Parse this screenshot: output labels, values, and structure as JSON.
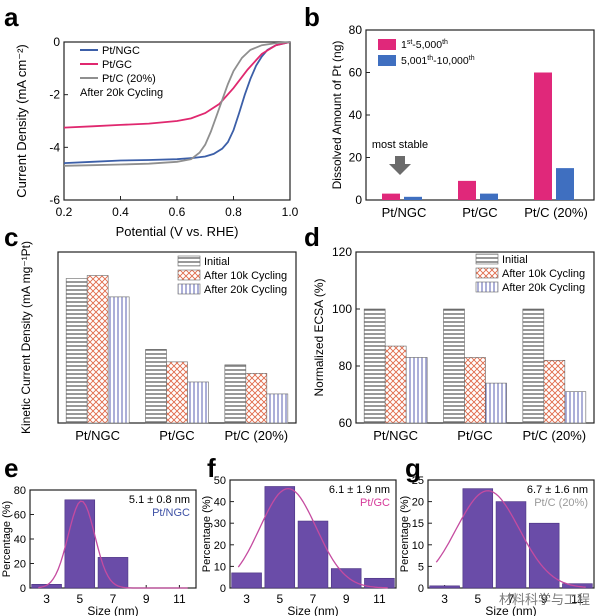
{
  "panels": {
    "a": "a",
    "b": "b",
    "c": "c",
    "d": "d",
    "e": "e",
    "f": "f",
    "g": "g"
  },
  "watermark": "材料科学与工程",
  "chart_data": [
    {
      "id": "a",
      "type": "line",
      "xlabel": "Potential (V vs. RHE)",
      "ylabel": "Current Density (mA cm⁻²)",
      "xlim": [
        0.2,
        1.0
      ],
      "ylim": [
        -6,
        0
      ],
      "xticks": [
        0.2,
        0.4,
        0.6,
        0.8,
        1.0
      ],
      "xtick_labels": [
        "0.2",
        "0.4",
        "0.6",
        "0.8",
        "1.0"
      ],
      "yticks": [
        0,
        -2,
        -4,
        -6
      ],
      "ytick_labels": [
        "0",
        "-2",
        "-4",
        "-6"
      ],
      "legend": [
        {
          "label": "Pt/NGC",
          "color": "#3c5fa8"
        },
        {
          "label": "Pt/GC",
          "color": "#e0286f"
        },
        {
          "label": "Pt/C (20%)",
          "color": "#8f8f8f"
        }
      ],
      "annotation": "After 20k Cycling",
      "series": [
        {
          "name": "Pt/NGC",
          "color": "#3c5fa8",
          "x": [
            0.2,
            0.3,
            0.4,
            0.5,
            0.6,
            0.66,
            0.7,
            0.73,
            0.76,
            0.78,
            0.8,
            0.82,
            0.84,
            0.86,
            0.88,
            0.9,
            0.92,
            0.95,
            1.0
          ],
          "y": [
            -4.6,
            -4.55,
            -4.5,
            -4.48,
            -4.45,
            -4.4,
            -4.35,
            -4.25,
            -4.05,
            -3.8,
            -3.35,
            -2.7,
            -2.0,
            -1.4,
            -0.9,
            -0.55,
            -0.3,
            -0.12,
            0
          ]
        },
        {
          "name": "Pt/GC",
          "color": "#e0286f",
          "x": [
            0.2,
            0.3,
            0.4,
            0.5,
            0.6,
            0.65,
            0.7,
            0.75,
            0.8,
            0.85,
            0.9,
            0.95,
            1.0
          ],
          "y": [
            -3.25,
            -3.2,
            -3.15,
            -3.1,
            -3.0,
            -2.9,
            -2.7,
            -2.35,
            -1.75,
            -1.05,
            -0.45,
            -0.12,
            0
          ]
        },
        {
          "name": "Pt/C (20%)",
          "color": "#8f8f8f",
          "x": [
            0.2,
            0.3,
            0.4,
            0.5,
            0.6,
            0.65,
            0.68,
            0.7,
            0.72,
            0.74,
            0.76,
            0.78,
            0.8,
            0.83,
            0.86,
            0.9,
            0.95,
            1.0
          ],
          "y": [
            -4.7,
            -4.68,
            -4.65,
            -4.62,
            -4.55,
            -4.45,
            -4.2,
            -3.9,
            -3.4,
            -2.8,
            -2.2,
            -1.6,
            -1.1,
            -0.6,
            -0.3,
            -0.12,
            -0.04,
            0
          ]
        }
      ]
    },
    {
      "id": "b",
      "type": "bar",
      "ylabel": "Dissolved Amount of Pt (ng)",
      "categories": [
        "Pt/NGC",
        "Pt/GC",
        "Pt/C (20%)"
      ],
      "ylim": [
        0,
        80
      ],
      "yticks": [
        0,
        20,
        40,
        60,
        80
      ],
      "ytick_labels": [
        "0",
        "20",
        "40",
        "60",
        "80"
      ],
      "series": [
        {
          "name": "1st-5,000th",
          "label_base": "1",
          "label_sup": "st",
          "label_mid": "-5,000",
          "label_sup2": "th",
          "color": "#e0287a",
          "values": [
            3,
            9,
            60
          ]
        },
        {
          "name": "5,001th-10,000th",
          "label_base": "5,001",
          "label_sup": "th",
          "label_mid": "-10,000",
          "label_sup2": "th",
          "color": "#3f6fc0",
          "values": [
            1.5,
            3,
            15
          ]
        }
      ],
      "annotation": "most stable"
    },
    {
      "id": "c",
      "type": "bar",
      "ylabel": "Kinetic Current Density (mA mg⁻¹Pt)",
      "categories": [
        "Pt/NGC",
        "Pt/GC",
        "Pt/C (20%)"
      ],
      "ylim": [
        0,
        40
      ],
      "series": [
        {
          "name": "Initial",
          "pattern": "hlines",
          "values": [
            33.8,
            17.2,
            13.6
          ]
        },
        {
          "name": "After 10k Cycling",
          "pattern": "cross",
          "values": [
            34.5,
            14.3,
            11.6
          ]
        },
        {
          "name": "After 20k Cycling",
          "pattern": "vlines",
          "values": [
            29.5,
            9.6,
            6.8
          ]
        }
      ]
    },
    {
      "id": "d",
      "type": "bar",
      "ylabel": "Normalized ECSA (%)",
      "categories": [
        "Pt/NGC",
        "Pt/GC",
        "Pt/C (20%)"
      ],
      "ylim": [
        60,
        120
      ],
      "yticks": [
        60,
        80,
        100,
        120
      ],
      "ytick_labels": [
        "60",
        "80",
        "100",
        "120"
      ],
      "series": [
        {
          "name": "Initial",
          "pattern": "hlines",
          "values": [
            100,
            100,
            100
          ]
        },
        {
          "name": "After 10k Cycling",
          "pattern": "cross",
          "values": [
            87,
            83,
            82
          ]
        },
        {
          "name": "After 20k Cycling",
          "pattern": "vlines",
          "values": [
            83,
            74,
            71
          ]
        }
      ]
    },
    {
      "id": "e",
      "type": "bar",
      "xlabel": "Size (nm)",
      "ylabel": "Percentage (%)",
      "xlim": [
        2,
        12
      ],
      "ylim": [
        0,
        80
      ],
      "xticks": [
        3,
        5,
        7,
        9,
        11
      ],
      "xtick_labels": [
        "3",
        "5",
        "7",
        "9",
        "11"
      ],
      "yticks": [
        0,
        20,
        40,
        60,
        80
      ],
      "ytick_labels": [
        "0",
        "20",
        "40",
        "60",
        "80"
      ],
      "bins": [
        3,
        5,
        7
      ],
      "values": [
        3,
        72,
        25
      ],
      "stat": "5.1 ± 0.8 nm",
      "label": "Pt/NGC",
      "label_color": "#3f52a6",
      "fit_color": "#c54ba0",
      "fit_mean": 5.1,
      "fit_sd": 0.8,
      "fit_peak": 71
    },
    {
      "id": "f",
      "type": "bar",
      "xlabel": "Size (nm)",
      "ylabel": "Percentage (%)",
      "xlim": [
        2,
        12
      ],
      "ylim": [
        0,
        50
      ],
      "xticks": [
        3,
        5,
        7,
        9,
        11
      ],
      "xtick_labels": [
        "3",
        "5",
        "7",
        "9",
        "11"
      ],
      "yticks": [
        0,
        10,
        20,
        30,
        40,
        50
      ],
      "ytick_labels": [
        "0",
        "10",
        "20",
        "30",
        "40",
        "50"
      ],
      "bins": [
        3,
        5,
        7,
        9,
        11
      ],
      "values": [
        7,
        47,
        31,
        9,
        4.5
      ],
      "stat": "6.1 ± 1.9 nm",
      "label": "Pt/GC",
      "label_color": "#d63b9a",
      "fit_color": "#c54ba0",
      "fit_mean": 5.5,
      "fit_sd": 1.7,
      "fit_peak": 46
    },
    {
      "id": "g",
      "type": "bar",
      "xlabel": "Size (nm)",
      "ylabel": "Percentage (%)",
      "xlim": [
        2,
        12
      ],
      "ylim": [
        0,
        25
      ],
      "xticks": [
        3,
        5,
        7,
        9,
        11
      ],
      "xtick_labels": [
        "3",
        "5",
        "7",
        "9",
        "11"
      ],
      "yticks": [
        0,
        5,
        10,
        15,
        20,
        25
      ],
      "ytick_labels": [
        "0",
        "5",
        "10",
        "15",
        "20",
        "25"
      ],
      "bins": [
        3,
        5,
        7,
        9,
        11
      ],
      "values": [
        0.5,
        23,
        20,
        15,
        1
      ],
      "stat": "6.7 ± 1.6 nm",
      "label": "Pt/C (20%)",
      "label_color": "#9a9a9a",
      "fit_color": "#c54ba0",
      "fit_mean": 5.6,
      "fit_sd": 1.9,
      "fit_peak": 22.5
    }
  ]
}
